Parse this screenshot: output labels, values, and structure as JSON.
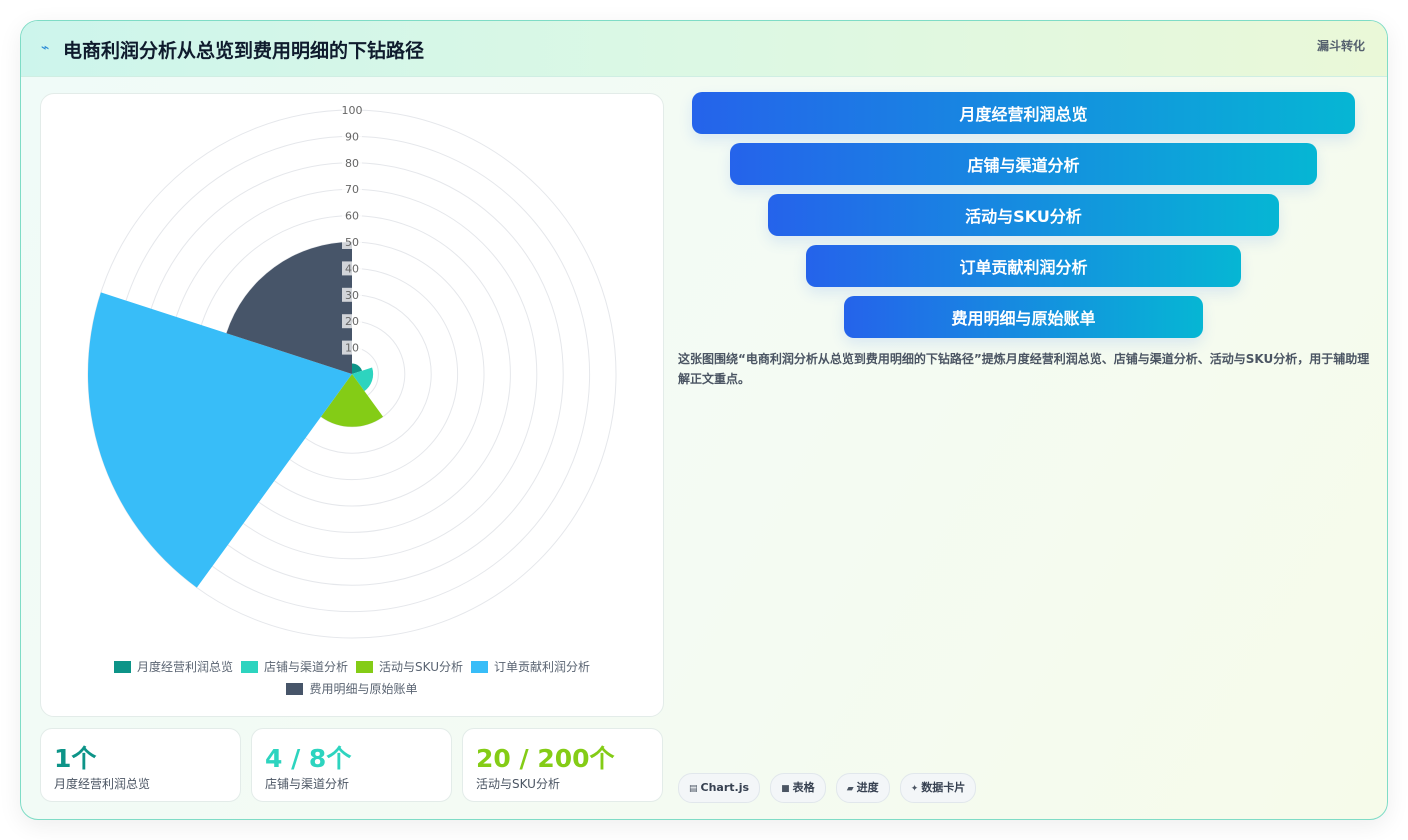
{
  "header": {
    "icon": "flash-icon",
    "title": "电商利润分析从总览到费用明细的下钻路径",
    "tag": "漏斗转化"
  },
  "colors": {
    "teal": "#0d9488",
    "aqua": "#2dd4bf",
    "green": "#84cc16",
    "sky": "#38bdf8",
    "slate": "#475569",
    "funnel_start": "#2563eb",
    "funnel_end": "#06b6d4"
  },
  "chart_data": {
    "type": "polarArea",
    "categories": [
      "月度经营利润总览",
      "店铺与渠道分析",
      "活动与SKU分析",
      "订单贡献利润分析",
      "费用明细与原始账单"
    ],
    "values": [
      4,
      8,
      20,
      100,
      50
    ],
    "colors": [
      "#0d9488",
      "#2dd4bf",
      "#84cc16",
      "#38bdf8",
      "#475569"
    ],
    "r_ticks": [
      "10",
      "20",
      "30",
      "40",
      "50",
      "60",
      "70",
      "80",
      "90",
      "100"
    ],
    "r_range": [
      0,
      100
    ],
    "legend_position": "bottom",
    "grid": true
  },
  "stats": [
    {
      "value": "1个",
      "label": "月度经营利润总览",
      "color": "#0d9488"
    },
    {
      "value": "4 / 8个",
      "label": "店铺与渠道分析",
      "color": "#2dd4bf"
    },
    {
      "value": "20 / 200个",
      "label": "活动与SKU分析",
      "color": "#84cc16"
    }
  ],
  "funnel": [
    "月度经营利润总览",
    "店铺与渠道分析",
    "活动与SKU分析",
    "订单贡献利润分析",
    "费用明细与原始账单"
  ],
  "description": "这张图围绕“电商利润分析从总览到费用明细的下钻路径”提炼月度经营利润总览、店铺与渠道分析、活动与SKU分析，用于辅助理解正文重点。",
  "chips": [
    {
      "icon": "chart-icon",
      "glyph": "▤",
      "label": "Chart.js"
    },
    {
      "icon": "table-icon",
      "glyph": "■",
      "label": "表格"
    },
    {
      "icon": "progress-icon",
      "glyph": "▰",
      "label": "进度"
    },
    {
      "icon": "sparkle-icon",
      "glyph": "✦",
      "label": "数据卡片"
    }
  ]
}
